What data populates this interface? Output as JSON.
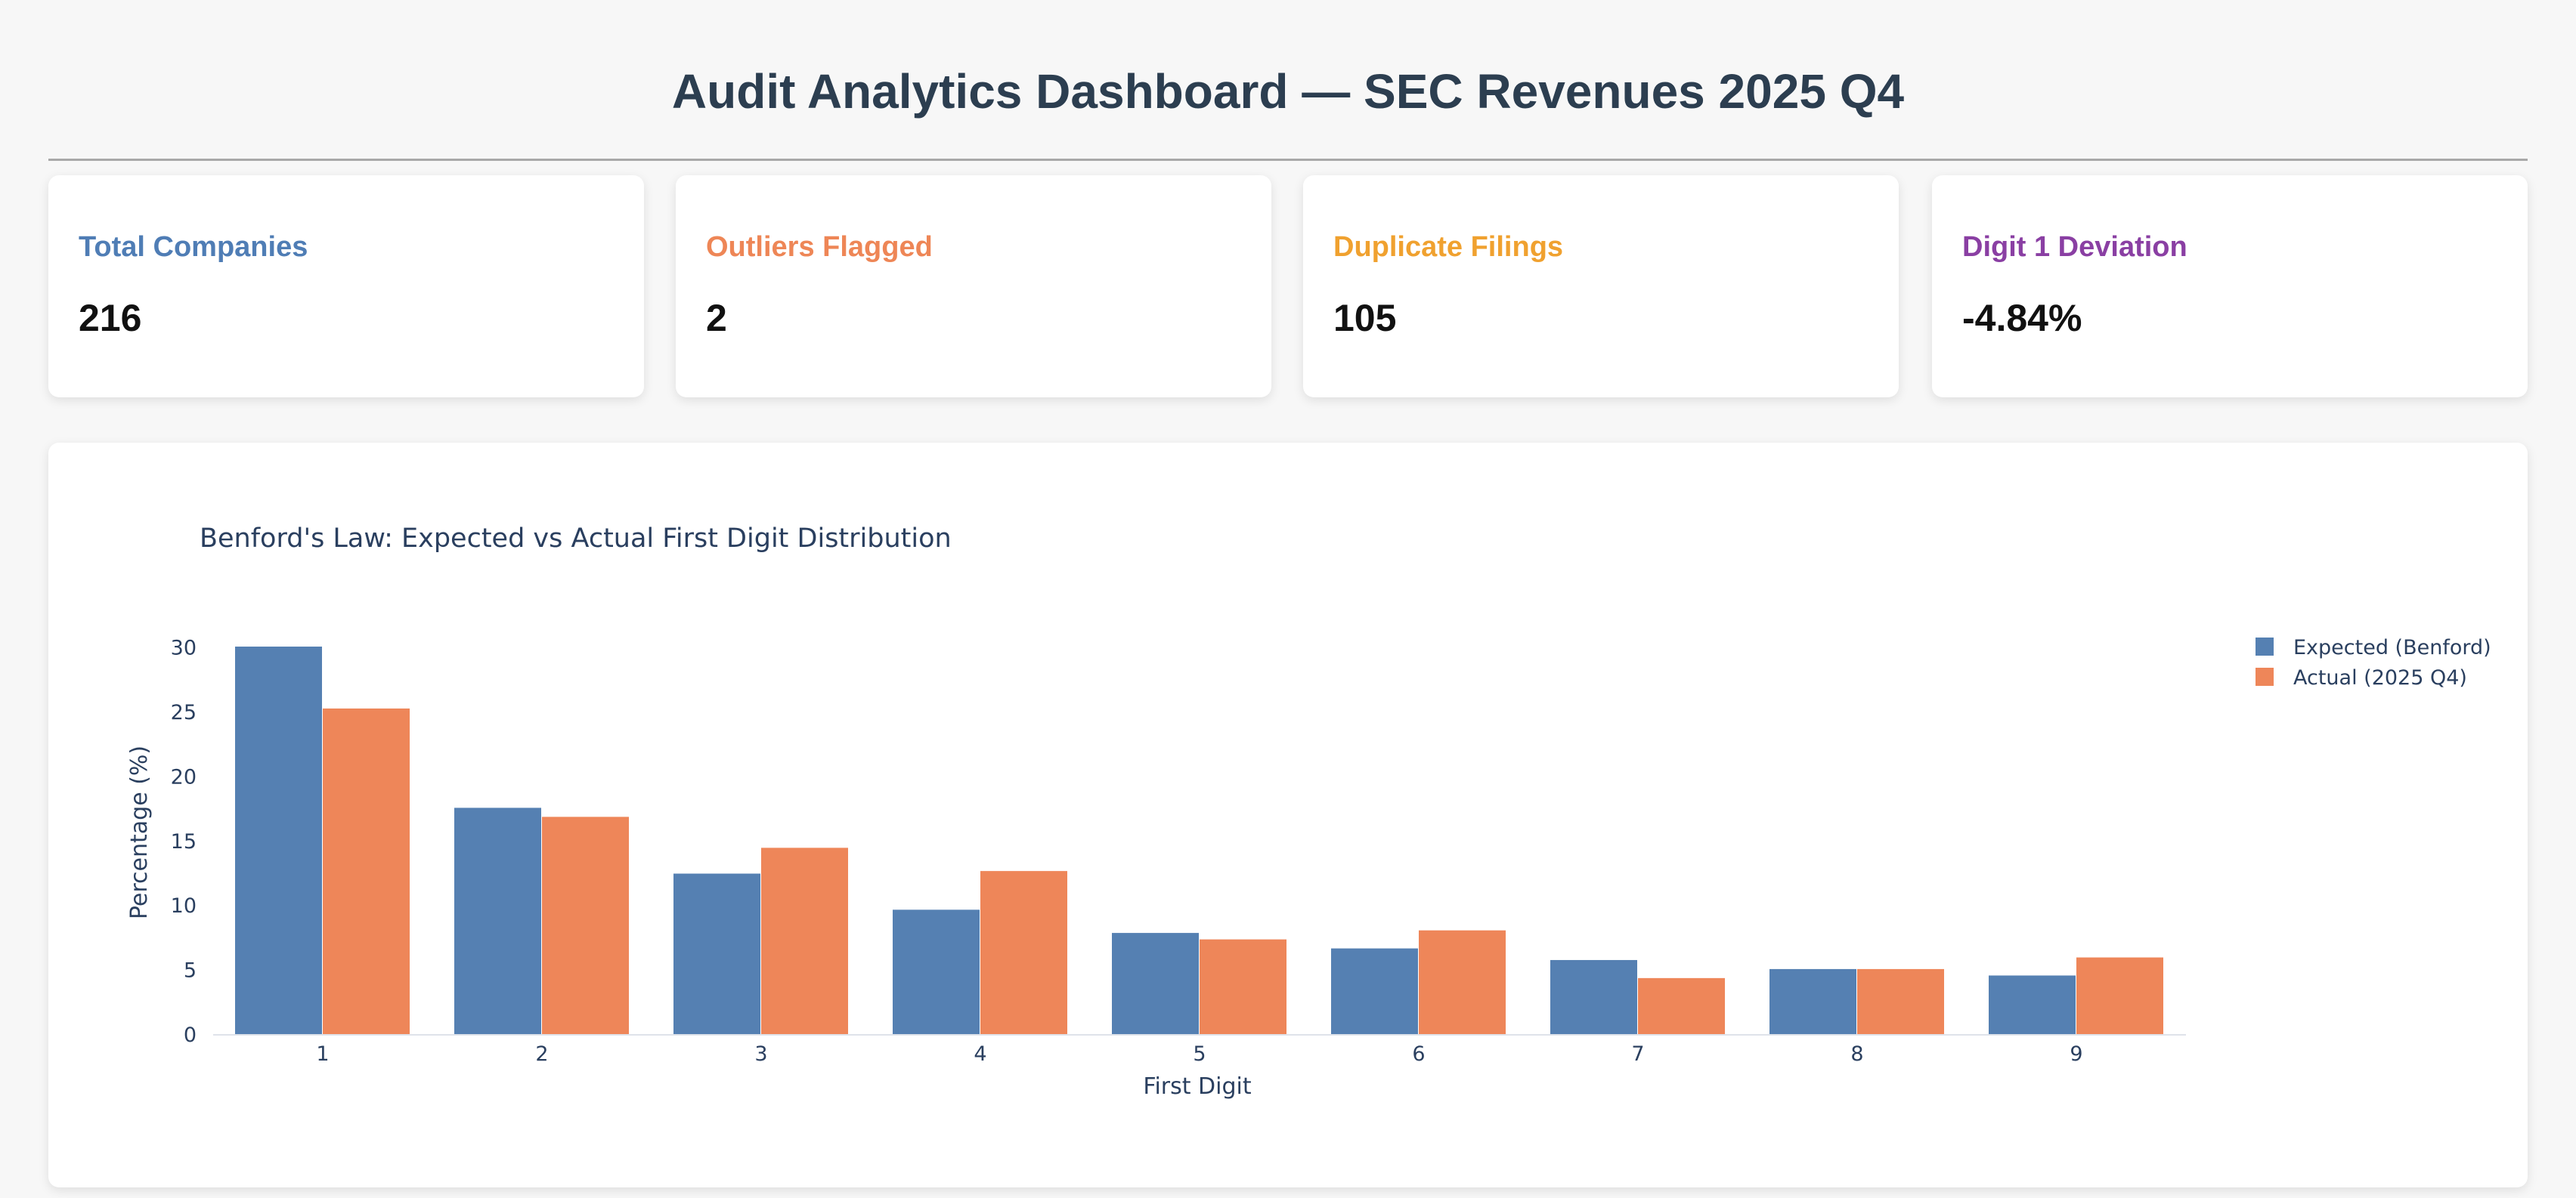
{
  "header": {
    "title": "Audit Analytics Dashboard — SEC Revenues 2025 Q4"
  },
  "kpis": [
    {
      "label": "Total Companies",
      "value": "216",
      "color": "#4f7db5"
    },
    {
      "label": "Outliers Flagged",
      "value": "2",
      "color": "#ee8656"
    },
    {
      "label": "Duplicate Filings",
      "value": "105",
      "color": "#f0a12f"
    },
    {
      "label": "Digit 1 Deviation",
      "value": "-4.84%",
      "color": "#8a3fa3"
    }
  ],
  "chart_data": {
    "type": "bar",
    "title": "Benford's Law: Expected vs Actual First Digit Distribution",
    "xlabel": "First Digit",
    "ylabel": "Percentage (%)",
    "categories": [
      "1",
      "2",
      "3",
      "4",
      "5",
      "6",
      "7",
      "8",
      "9"
    ],
    "series": [
      {
        "name": "Expected (Benford)",
        "color": "#5580b2",
        "values": [
          30.1,
          17.6,
          12.5,
          9.7,
          7.9,
          6.7,
          5.8,
          5.1,
          4.6
        ]
      },
      {
        "name": "Actual (2025 Q4)",
        "color": "#ee8659",
        "values": [
          25.3,
          16.9,
          14.5,
          12.7,
          7.4,
          8.1,
          4.4,
          5.1,
          6.0
        ]
      }
    ],
    "ylim": [
      0,
      30.1
    ],
    "yticks": [
      0,
      5,
      10,
      15,
      20,
      25,
      30
    ],
    "grid": false,
    "legend_position": "top-right"
  }
}
